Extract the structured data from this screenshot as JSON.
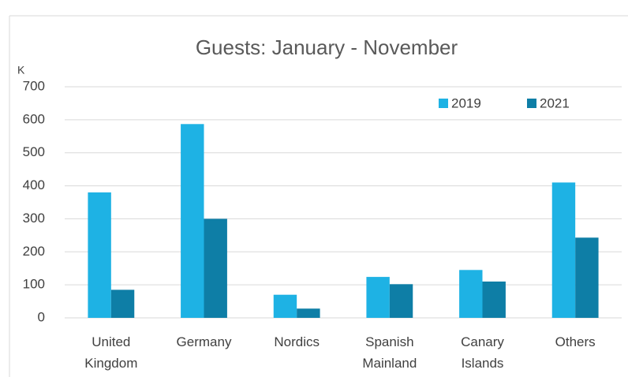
{
  "chart_data": {
    "type": "bar",
    "title": "Guests: January - November",
    "y_unit": "K",
    "categories": [
      "United Kingdom",
      "Germany",
      "Nordics",
      "Spanish Mainland",
      "Canary Islands",
      "Others"
    ],
    "series": [
      {
        "name": "2019",
        "color": "#1eb2e4",
        "values": [
          380,
          587,
          70,
          124,
          145,
          410
        ]
      },
      {
        "name": "2021",
        "color": "#0e7ea6",
        "values": [
          85,
          300,
          28,
          102,
          110,
          243
        ]
      }
    ],
    "ylim": [
      0,
      700
    ],
    "yticks": [
      0,
      100,
      200,
      300,
      400,
      500,
      600,
      700
    ],
    "grid": true,
    "legend": "top-right"
  }
}
